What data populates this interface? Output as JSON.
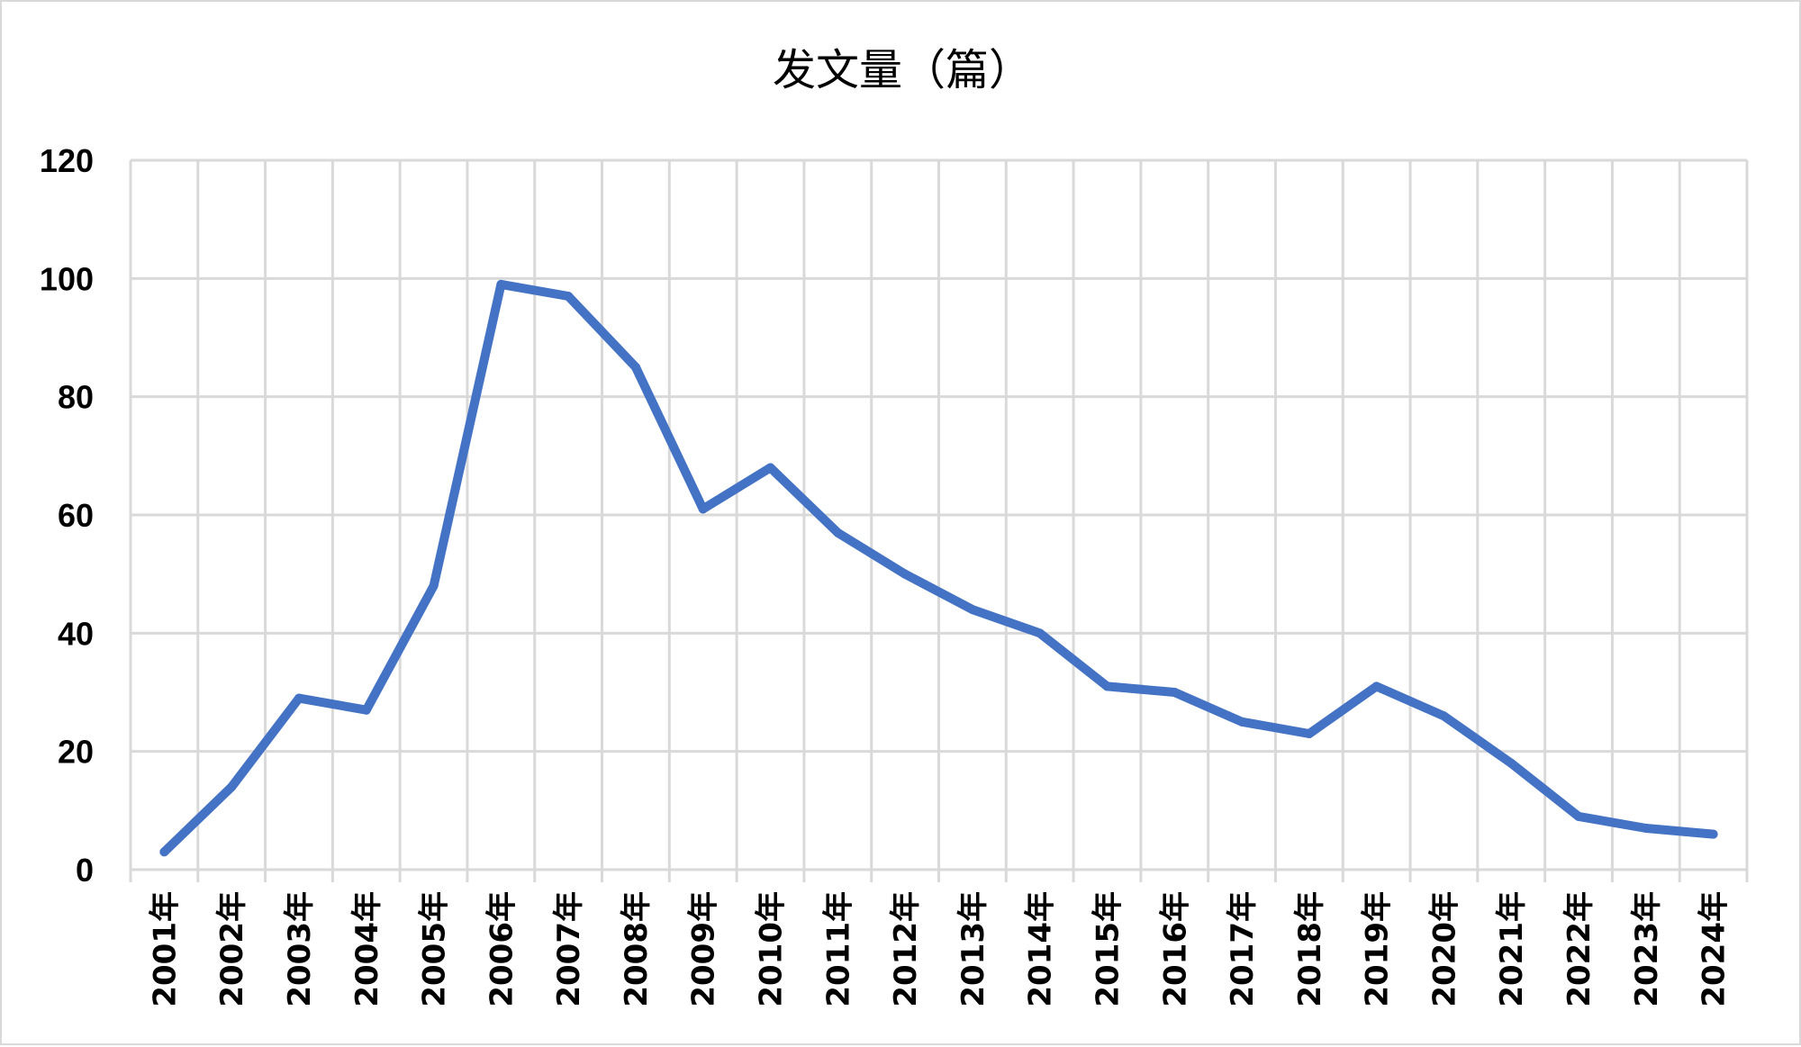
{
  "chart_data": {
    "type": "line",
    "title": "发文量（篇）",
    "xlabel": "",
    "ylabel": "",
    "categories": [
      "2001年",
      "2002年",
      "2003年",
      "2004年",
      "2005年",
      "2006年",
      "2007年",
      "2008年",
      "2009年",
      "2010年",
      "2011年",
      "2012年",
      "2013年",
      "2014年",
      "2015年",
      "2016年",
      "2017年",
      "2018年",
      "2019年",
      "2020年",
      "2021年",
      "2022年",
      "2023年",
      "2024年"
    ],
    "series": [
      {
        "values": [
          3,
          14,
          29,
          27,
          48,
          99,
          97,
          85,
          61,
          68,
          57,
          50,
          44,
          40,
          31,
          30,
          25,
          23,
          31,
          26,
          18,
          9,
          7,
          6
        ],
        "color": "#4472C4"
      }
    ],
    "ylim": [
      0,
      120
    ],
    "yticks": [
      "0",
      "20",
      "40",
      "60",
      "80",
      "100",
      "120"
    ],
    "grid": true,
    "legend": "none"
  }
}
